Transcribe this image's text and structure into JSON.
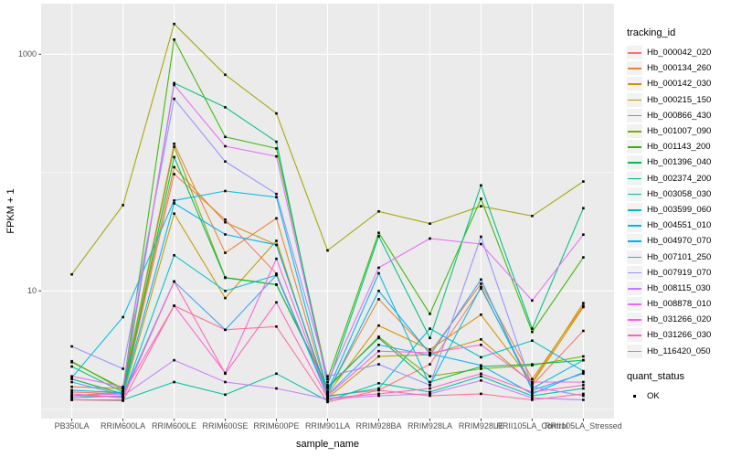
{
  "chart_data": {
    "type": "line",
    "xlabel": "sample_name",
    "ylabel": "FPKM + 1",
    "scale": "log10",
    "ylim": [
      0.83,
      2700
    ],
    "grid": true,
    "y_ticks": [
      {
        "label": "1000",
        "value": 1000
      },
      {
        "label": "10",
        "value": 10
      }
    ],
    "y_minor_gridlines": [
      100,
      1
    ],
    "categories": [
      "PB350LA",
      "RRIM600LA",
      "RRIM600LE",
      "RRIM600SE",
      "RRIM600PE",
      "RRIM901LA",
      "RRIM928BA",
      "RRIM928LA",
      "RRIM928LE",
      "RRII105LA_Control",
      "RRII105LA_Stressed"
    ],
    "legend": {
      "tracking_title": "tracking_id",
      "quant_title": "quant_status",
      "quant_items": [
        {
          "label": "OK",
          "marker": "black-square"
        }
      ],
      "position": "right"
    },
    "marker": {
      "shape": "square",
      "color": "#000000",
      "size": 2.6
    },
    "series": [
      {
        "name": "Hb_000042_020",
        "color": "#F8766D",
        "values": [
          1.4,
          1.35,
          97,
          40,
          14,
          1.3,
          1.45,
          2.4,
          10.5,
          1.6,
          4.6
        ]
      },
      {
        "name": "Hb_000134_260",
        "color": "#EA8331",
        "values": [
          1.55,
          1.5,
          175,
          21,
          41,
          1.4,
          8.5,
          3.0,
          11.5,
          1.8,
          7.5
        ]
      },
      {
        "name": "Hb_000142_030",
        "color": "#D89000",
        "values": [
          1.3,
          1.4,
          111,
          38,
          24.5,
          1.35,
          5.1,
          3.2,
          6.3,
          1.7,
          7.9
        ]
      },
      {
        "name": "Hb_000215_150",
        "color": "#C09B00",
        "values": [
          1.25,
          1.3,
          45,
          8.7,
          26.5,
          1.25,
          2.8,
          2.9,
          3.9,
          1.65,
          7.3
        ]
      },
      {
        "name": "Hb_000866_430",
        "color": "#A3A500",
        "values": [
          13.8,
          53,
          1800,
          670,
          316,
          22,
          47,
          37,
          52,
          43,
          84
        ]
      },
      {
        "name": "Hb_001007_090",
        "color": "#7CAE00",
        "values": [
          2.55,
          1.45,
          165,
          13,
          11.3,
          1.5,
          4.1,
          1.9,
          2.2,
          2.35,
          2.8
        ]
      },
      {
        "name": "Hb_001143_200",
        "color": "#39B600",
        "values": [
          2.5,
          1.5,
          1330,
          200,
          160,
          1.8,
          31,
          6.4,
          60,
          4.5,
          19.2
        ]
      },
      {
        "name": "Hb_001396_040",
        "color": "#00BB4E",
        "values": [
          1.8,
          1.35,
          135,
          12.9,
          11.3,
          1.55,
          4.0,
          1.7,
          2.3,
          2.4,
          2.6
        ]
      },
      {
        "name": "Hb_002374_200",
        "color": "#00BF7D",
        "values": [
          2.3,
          1.4,
          570,
          356,
          182,
          1.6,
          29,
          4.0,
          78,
          4.8,
          50
        ]
      },
      {
        "name": "Hb_003058_030",
        "color": "#00C1A3",
        "values": [
          1.2,
          1.2,
          1.7,
          1.33,
          2.0,
          1.18,
          1.66,
          1.4,
          1.9,
          1.3,
          1.5
        ]
      },
      {
        "name": "Hb_003599_060",
        "color": "#00BFC4",
        "values": [
          1.3,
          1.28,
          20,
          10,
          13.6,
          1.28,
          1.5,
          4.8,
          2.75,
          3.8,
          2.1
        ]
      },
      {
        "name": "Hb_004551_010",
        "color": "#00BAE0",
        "values": [
          1.85,
          6.0,
          58,
          69.8,
          62,
          1.42,
          14.1,
          1.6,
          10.8,
          1.5,
          2.6
        ]
      },
      {
        "name": "Hb_004970_070",
        "color": "#00B0F6",
        "values": [
          1.45,
          1.38,
          55,
          30,
          24.5,
          1.36,
          10,
          2.95,
          2.35,
          1.35,
          2.05
        ]
      },
      {
        "name": "Hb_007101_250",
        "color": "#35A2FF",
        "values": [
          1.7,
          1.32,
          12,
          4.7,
          13.6,
          1.32,
          3.5,
          2.85,
          12.5,
          1.45,
          2.0
        ]
      },
      {
        "name": "Hb_007919_070",
        "color": "#9590FF",
        "values": [
          3.4,
          2.2,
          420,
          124,
          66,
          1.9,
          2.4,
          1.6,
          28.7,
          1.55,
          1.3
        ]
      },
      {
        "name": "Hb_008115_030",
        "color": "#C77CFF",
        "values": [
          1.25,
          1.3,
          2.6,
          1.7,
          1.5,
          1.22,
          1.3,
          1.35,
          1.75,
          1.25,
          1.2
        ]
      },
      {
        "name": "Hb_008878_010",
        "color": "#E76BF3",
        "values": [
          1.9,
          1.55,
          550,
          167,
          137,
          1.7,
          15.7,
          27.7,
          24.9,
          8.3,
          29.9
        ]
      },
      {
        "name": "Hb_031266_020",
        "color": "#FA62DB",
        "values": [
          1.3,
          1.35,
          7.5,
          2.03,
          18.7,
          1.3,
          3.1,
          3.0,
          3.5,
          1.7,
          1.7
        ]
      },
      {
        "name": "Hb_031266_030",
        "color": "#FF62BC",
        "values": [
          1.35,
          1.25,
          12,
          2.0,
          8.0,
          1.24,
          1.35,
          1.5,
          2.0,
          1.4,
          1.6
        ]
      },
      {
        "name": "Hb_116420_050",
        "color": "#FF6A98",
        "values": [
          1.2,
          1.18,
          7.5,
          4.7,
          5.0,
          1.15,
          1.45,
          1.3,
          1.35,
          1.2,
          1.35
        ]
      }
    ],
    "colors": {
      "panel_bg": "#EBEBEB",
      "gridline": "#FFFFFF",
      "tick_text": "#4D4D4D",
      "axis_text": "#000000",
      "legend_key_bg": "#F2F2F2"
    }
  }
}
